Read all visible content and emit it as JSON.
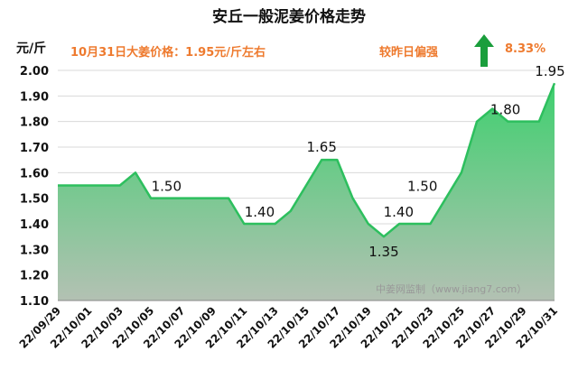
{
  "header": {
    "title": "安丘一般泥姜价格走势",
    "unit": "元/斤",
    "price_note": "10月31日大姜价格：1.95元/斤左右",
    "compare_label": "较昨日偏强",
    "change_pct": "8.33%",
    "arrow_icon": "up-arrow-icon"
  },
  "watermark": "中姜网监制（www.jiang7.com）",
  "colors": {
    "line": "#2dbf5e",
    "fill_top": "#3fd06f",
    "fill_bottom": "#b3c1b3",
    "accent": "#ee7a2e",
    "arrow": "#1a9e3c"
  },
  "chart_data": {
    "type": "area",
    "title": "安丘一般泥姜价格走势",
    "ylabel": "元/斤",
    "ylim": [
      1.1,
      2.0
    ],
    "yticks": [
      "1.10",
      "1.20",
      "1.30",
      "1.40",
      "1.50",
      "1.60",
      "1.70",
      "1.80",
      "1.90",
      "2.00"
    ],
    "grid": true,
    "x": [
      "22/09/29",
      "22/09/30",
      "22/10/01",
      "22/10/02",
      "22/10/03",
      "22/10/04",
      "22/10/05",
      "22/10/06",
      "22/10/07",
      "22/10/08",
      "22/10/09",
      "22/10/10",
      "22/10/11",
      "22/10/12",
      "22/10/13",
      "22/10/14",
      "22/10/15",
      "22/10/16",
      "22/10/17",
      "22/10/18",
      "22/10/19",
      "22/10/20",
      "22/10/21",
      "22/10/22",
      "22/10/23",
      "22/10/24",
      "22/10/25",
      "22/10/26",
      "22/10/27",
      "22/10/28",
      "22/10/29",
      "22/10/30",
      "22/10/31"
    ],
    "xticks": [
      "22/09/29",
      "22/10/01",
      "22/10/03",
      "22/10/05",
      "22/10/07",
      "22/10/09",
      "22/10/11",
      "22/10/13",
      "22/10/15",
      "22/10/17",
      "22/10/19",
      "22/10/21",
      "22/10/23",
      "22/10/25",
      "22/10/27",
      "22/10/29",
      "22/10/31"
    ],
    "values": [
      1.55,
      1.55,
      1.55,
      1.55,
      1.55,
      1.6,
      1.5,
      1.5,
      1.5,
      1.5,
      1.5,
      1.5,
      1.4,
      1.4,
      1.4,
      1.45,
      1.55,
      1.65,
      1.65,
      1.5,
      1.4,
      1.35,
      1.4,
      1.4,
      1.4,
      1.5,
      1.6,
      1.8,
      1.85,
      1.8,
      1.8,
      1.8,
      1.95
    ],
    "data_labels": [
      {
        "index": 7,
        "text": "1.50"
      },
      {
        "index": 13,
        "text": "1.40"
      },
      {
        "index": 17,
        "text": "1.65"
      },
      {
        "index": 21,
        "text": "1.35"
      },
      {
        "index": 23,
        "text": "1.40"
      },
      {
        "index": 25,
        "text": "1.50"
      },
      {
        "index": 30,
        "text": "1.80"
      },
      {
        "index": 32,
        "text": "1.95"
      }
    ]
  }
}
